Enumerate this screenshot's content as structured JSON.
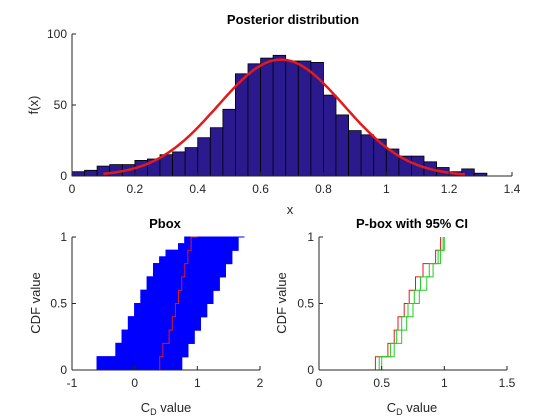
{
  "figure": {
    "background": "#ffffff"
  },
  "chart_data": [
    {
      "type": "bar",
      "title": "Posterior distribution",
      "xlabel": "x",
      "ylabel": "f(x)",
      "xlim": [
        0,
        1.4
      ],
      "ylim": [
        0,
        100
      ],
      "xticks": [
        "0",
        "0.2",
        "0.4",
        "0.6",
        "0.8",
        "1",
        "1.2",
        "1.4"
      ],
      "yticks": [
        "0",
        "50",
        "100"
      ],
      "bar_color": "#2a1a8e",
      "bin_width": 0.04,
      "bin_centers": [
        0.02,
        0.06,
        0.1,
        0.14,
        0.18,
        0.22,
        0.26,
        0.3,
        0.34,
        0.38,
        0.42,
        0.46,
        0.5,
        0.54,
        0.58,
        0.62,
        0.66,
        0.7,
        0.74,
        0.78,
        0.82,
        0.86,
        0.9,
        0.94,
        0.98,
        1.02,
        1.06,
        1.1,
        1.14,
        1.18,
        1.22,
        1.26,
        1.3
      ],
      "bin_heights": [
        3,
        4,
        7,
        8,
        8,
        11,
        12,
        15,
        17,
        20,
        27,
        34,
        47,
        72,
        79,
        83,
        85,
        81,
        81,
        80,
        57,
        43,
        32,
        29,
        26,
        19,
        14,
        14,
        10,
        6,
        3,
        5,
        2
      ],
      "fit_curve": {
        "name": "",
        "color": "#e31a1c",
        "mean": 0.665,
        "sd": 0.2,
        "peak": 82,
        "x_range": [
          0.1,
          1.25
        ]
      }
    },
    {
      "type": "line",
      "title": "Pbox",
      "xlabel": "C_D value",
      "ylabel": "CDF value",
      "xlim": [
        -1,
        2
      ],
      "ylim": [
        0,
        1
      ],
      "xticks": [
        "-1",
        "0",
        "1",
        "2"
      ],
      "yticks": [
        "0",
        "0.5",
        "1"
      ],
      "band_color": "#0000ff",
      "band_lower": {
        "x": [
          -0.75,
          -0.6,
          -0.45,
          -0.3,
          -0.2,
          -0.1,
          0.0,
          0.1,
          0.2,
          0.3,
          0.4,
          0.5,
          0.6,
          0.7,
          0.8,
          1.0
        ],
        "y": [
          0.0,
          0.1,
          0.1,
          0.2,
          0.3,
          0.4,
          0.5,
          0.6,
          0.7,
          0.8,
          0.85,
          0.9,
          0.9,
          0.95,
          1.0,
          1.0
        ]
      },
      "band_upper": {
        "x": [
          0.6,
          0.75,
          0.85,
          0.95,
          1.05,
          1.15,
          1.25,
          1.35,
          1.45,
          1.55,
          1.65,
          1.75
        ],
        "y": [
          0.0,
          0.1,
          0.2,
          0.3,
          0.4,
          0.5,
          0.6,
          0.7,
          0.8,
          0.9,
          1.0,
          1.0
        ]
      },
      "center_line": {
        "color": "#e31a1c",
        "x": [
          0.3,
          0.4,
          0.45,
          0.55,
          0.6,
          0.65,
          0.7,
          0.75,
          0.8,
          0.85,
          0.9,
          1.0
        ],
        "y": [
          0.0,
          0.1,
          0.2,
          0.3,
          0.4,
          0.5,
          0.6,
          0.7,
          0.8,
          0.9,
          1.0,
          1.0
        ]
      }
    },
    {
      "type": "line",
      "title": "P-box with 95% CI",
      "xlabel": "C_D value",
      "ylabel": "CDF value",
      "xlim": [
        0,
        1.5
      ],
      "ylim": [
        0,
        1
      ],
      "xticks": [
        "0",
        "0.5",
        "1",
        "1.5"
      ],
      "yticks": [
        "0",
        "0.5",
        "1"
      ],
      "series": [
        {
          "color": "#e31a1c",
          "x": [
            0.36,
            0.45,
            0.55,
            0.6,
            0.63,
            0.68,
            0.72,
            0.77,
            0.83,
            0.93,
            0.97
          ],
          "y": [
            0.0,
            0.1,
            0.2,
            0.3,
            0.4,
            0.5,
            0.6,
            0.7,
            0.8,
            0.9,
            1.0
          ]
        },
        {
          "color": "#22cc22",
          "x": [
            0.41,
            0.48,
            0.57,
            0.62,
            0.66,
            0.71,
            0.76,
            0.81,
            0.88,
            0.95,
            0.99
          ],
          "y": [
            0.0,
            0.1,
            0.2,
            0.3,
            0.4,
            0.5,
            0.6,
            0.7,
            0.8,
            0.9,
            1.0
          ]
        },
        {
          "color": "#22cc22",
          "x": [
            0.43,
            0.5,
            0.6,
            0.66,
            0.7,
            0.75,
            0.8,
            0.86,
            0.91,
            0.97,
            1.0
          ],
          "y": [
            0.0,
            0.1,
            0.2,
            0.3,
            0.4,
            0.5,
            0.6,
            0.7,
            0.8,
            0.9,
            1.0
          ]
        }
      ]
    }
  ]
}
